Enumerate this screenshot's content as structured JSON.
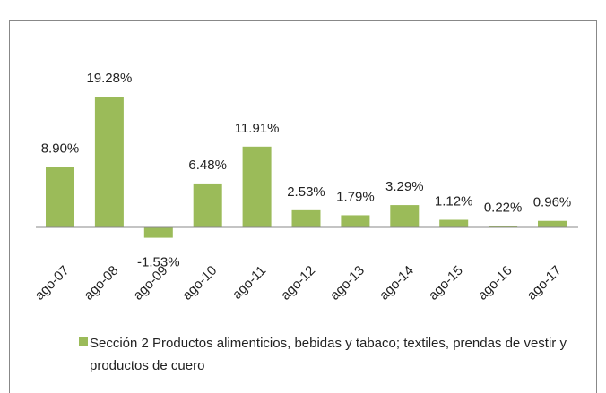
{
  "chart_data": {
    "type": "bar",
    "categories": [
      "ago-07",
      "ago-08",
      "ago-09",
      "ago-10",
      "ago-11",
      "ago-12",
      "ago-13",
      "ago-14",
      "ago-15",
      "ago-16",
      "ago-17"
    ],
    "series": [
      {
        "name": "Sección 2 Productos alimenticios, bebidas y tabaco; textiles, prendas de vestir y productos de cuero",
        "color": "#9bbb59",
        "values": [
          8.9,
          19.28,
          -1.53,
          6.48,
          11.91,
          2.53,
          1.79,
          3.29,
          1.12,
          0.22,
          0.96
        ],
        "value_labels": [
          "8.90%",
          "19.28%",
          "-1.53%",
          "6.48%",
          "11.91%",
          "2.53%",
          "1.79%",
          "3.29%",
          "1.12%",
          "0.22%",
          "0.96%"
        ]
      }
    ],
    "legend": "bottom"
  }
}
